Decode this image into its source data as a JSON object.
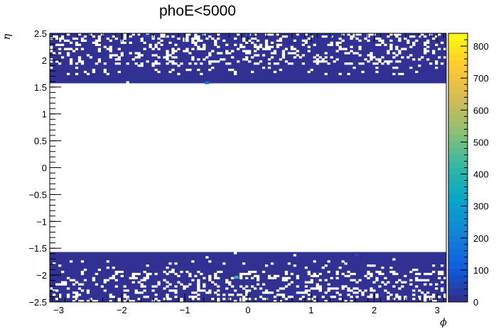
{
  "chart_data": {
    "type": "heatmap",
    "title": "phoE<5000",
    "xlabel": "ϕ",
    "ylabel": "η",
    "xlim": [
      -3.1416,
      3.1416
    ],
    "ylim": [
      -2.5,
      2.5
    ],
    "x_ticks": [
      -3,
      -2,
      -1,
      0,
      1,
      2,
      3
    ],
    "x_tick_labels": [
      "−3",
      "−2",
      "−1",
      "0",
      "1",
      "2",
      "3"
    ],
    "y_ticks": [
      -2.5,
      -2,
      -1.5,
      -1,
      -0.5,
      0,
      0.5,
      1,
      1.5,
      2,
      2.5
    ],
    "y_tick_labels": [
      "−2.5",
      "−2",
      "−1.5",
      "−1",
      "−0.5",
      "0",
      "0.5",
      "1",
      "1.5",
      "2",
      "2.5"
    ],
    "colorbar": {
      "min": 0,
      "max": 840,
      "ticks": [
        0,
        100,
        200,
        300,
        400,
        500,
        600,
        700,
        800
      ],
      "tick_labels": [
        "0",
        "100",
        "200",
        "300",
        "400",
        "500",
        "600",
        "700",
        "800"
      ]
    },
    "populated_eta_bands": [
      [
        -2.5,
        -1.57
      ],
      [
        1.57,
        2.5
      ]
    ],
    "typical_value": 15,
    "hot_cells": [
      {
        "phi": 0.0,
        "eta": 2.47,
        "value": 160
      },
      {
        "phi": -0.65,
        "eta": 1.58,
        "value": 170
      },
      {
        "phi": -1.6,
        "eta": 2.45,
        "value": 60
      },
      {
        "phi": 1.3,
        "eta": 2.45,
        "value": 55
      },
      {
        "phi": -0.18,
        "eta": -2.04,
        "value": 400
      },
      {
        "phi": 1.72,
        "eta": -1.62,
        "value": 60
      }
    ],
    "grid": false,
    "legend": "none"
  },
  "colors": {
    "palette": [
      "#352a87",
      "#0f5cdd",
      "#1481d6",
      "#06a4ca",
      "#2eb7a4",
      "#87bf77",
      "#d1bb59",
      "#fec832",
      "#f9fb0e"
    ],
    "background": "#ffffff",
    "axis": "#000000"
  }
}
